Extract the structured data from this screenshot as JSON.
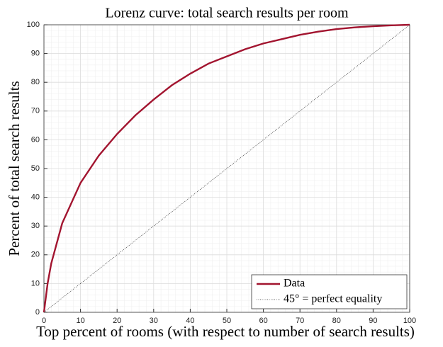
{
  "chart_data": {
    "type": "line",
    "title": "Lorenz curve: total search results per room",
    "xlabel": "Top percent of rooms (with respect to number of search results)",
    "ylabel": "Percent of total search results",
    "series": [
      {
        "name": "Data",
        "color": "#a2142f",
        "style": "solid",
        "x": [
          0,
          1,
          2,
          5,
          10,
          15,
          20,
          25,
          30,
          35,
          40,
          45,
          50,
          55,
          60,
          65,
          70,
          75,
          80,
          85,
          90,
          95,
          100
        ],
        "values": [
          0,
          10,
          17,
          31,
          45,
          54.5,
          62,
          68.5,
          74,
          79,
          83,
          86.5,
          89,
          91.5,
          93.5,
          95,
          96.5,
          97.6,
          98.5,
          99.1,
          99.5,
          99.8,
          100
        ]
      },
      {
        "name": "45° = perfect equality",
        "color": "#333333",
        "style": "dotted",
        "x": [
          0,
          100
        ],
        "values": [
          0,
          100
        ]
      }
    ],
    "xlim": [
      0,
      100
    ],
    "ylim": [
      0,
      100
    ],
    "xticks": [
      0,
      10,
      20,
      30,
      40,
      50,
      60,
      70,
      80,
      90,
      100
    ],
    "yticks": [
      0,
      10,
      20,
      30,
      40,
      50,
      60,
      70,
      80,
      90,
      100
    ],
    "grid": true,
    "minor_grid": true,
    "legend": "lower right"
  }
}
